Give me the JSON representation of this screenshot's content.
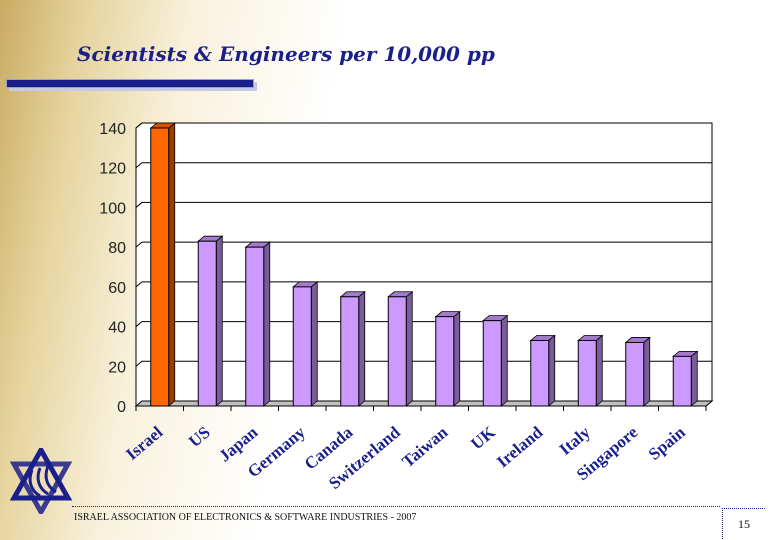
{
  "slide": {
    "title": "Scientists & Engineers per 10,000 pp",
    "footer": "ISRAEL ASSOCIATION OF ELECTRONICS & SOFTWARE INDUSTRIES  - 2007",
    "page_number": "15"
  },
  "colors": {
    "title": "#1a1f8c",
    "highlight_bar": "#ff6600",
    "bar": "#cc99ff",
    "plot_background": "#ffffff",
    "grid": "#000000"
  },
  "chart_data": {
    "type": "bar",
    "title": "",
    "xlabel": "",
    "ylabel": "",
    "ylim": [
      0,
      140
    ],
    "yticks": [
      0,
      20,
      40,
      60,
      80,
      100,
      120,
      140
    ],
    "grid": true,
    "legend": "none",
    "style": "3d",
    "categories": [
      "Israel",
      "US",
      "Japan",
      "Germany",
      "Canada",
      "Switzerland",
      "Taiwan",
      "UK",
      "Ireland",
      "Italy",
      "Singapore",
      "Spain"
    ],
    "values": [
      140,
      83,
      80,
      60,
      55,
      55,
      45,
      43,
      33,
      33,
      32,
      25
    ],
    "highlight_index": 0
  }
}
